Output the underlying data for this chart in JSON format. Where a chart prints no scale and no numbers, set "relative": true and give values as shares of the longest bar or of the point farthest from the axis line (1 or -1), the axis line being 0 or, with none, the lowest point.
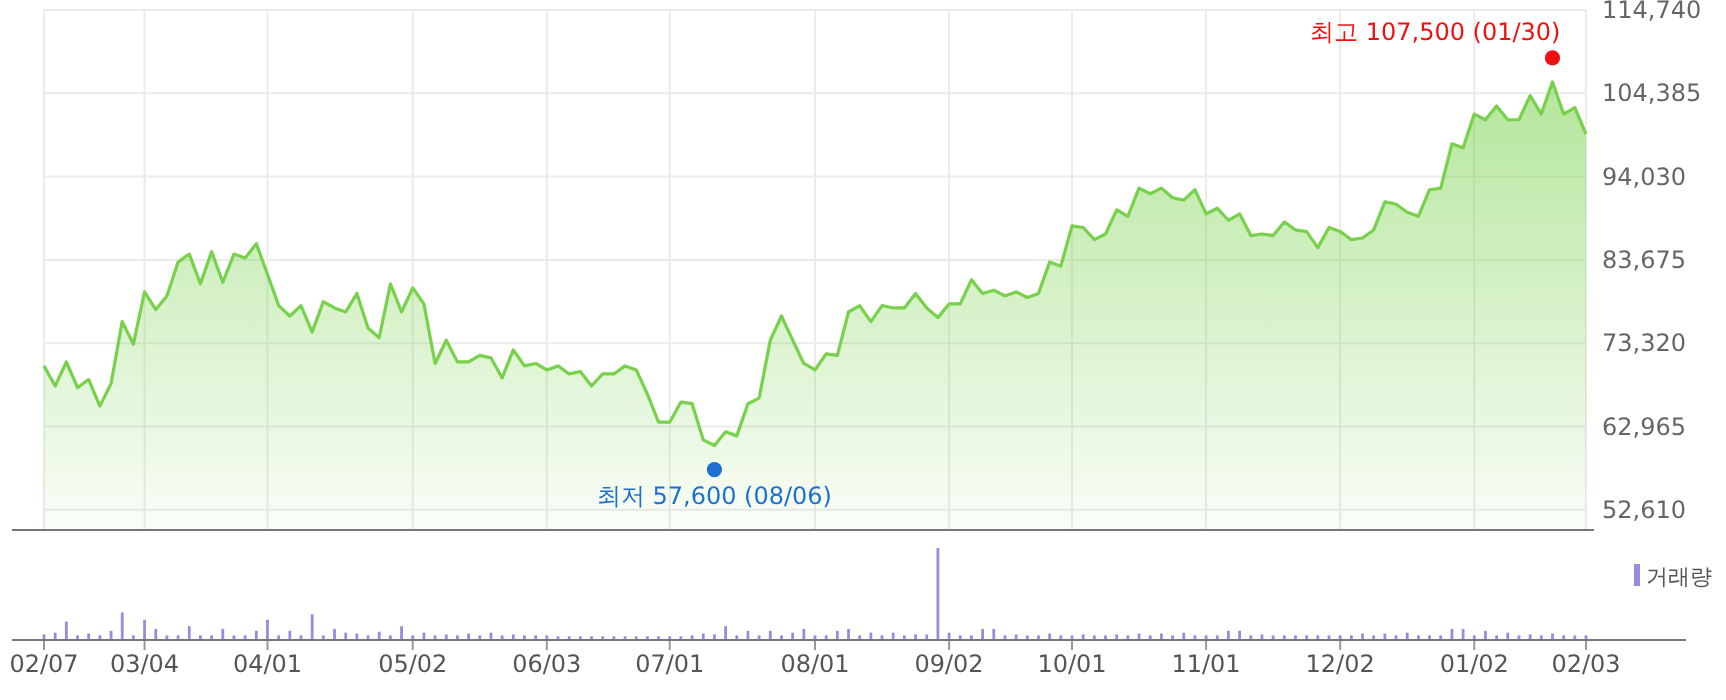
{
  "chart_data": [
    {
      "type": "area",
      "color": "#77d14a",
      "grid": true,
      "tick_labels": "y",
      "ylim": [
        50100,
        114740
      ],
      "categories": [
        null,
        null,
        null,
        null,
        null,
        null,
        null,
        null,
        null,
        null,
        null,
        null,
        null,
        null,
        null,
        null,
        null,
        null,
        null,
        null,
        null,
        null,
        null,
        null,
        null,
        null,
        null,
        null,
        null,
        null,
        null,
        null,
        null,
        null,
        null,
        null,
        null,
        null,
        null,
        null,
        null,
        null,
        null,
        null,
        null,
        null,
        null,
        null,
        null,
        null,
        null,
        null,
        null,
        null,
        null,
        null,
        null,
        null,
        null,
        null,
        null,
        null,
        null,
        null,
        null,
        null,
        null,
        null,
        null,
        null,
        null,
        null,
        null,
        null,
        null,
        null,
        null,
        null,
        null,
        null,
        null,
        null,
        null,
        null,
        null,
        null,
        null,
        null,
        null,
        null,
        null,
        null,
        null,
        null,
        null,
        null,
        null,
        null,
        null,
        null,
        null,
        null,
        null,
        null,
        null,
        null,
        null,
        null,
        null,
        null,
        null,
        null,
        null,
        null,
        null,
        null,
        null,
        null,
        null,
        null,
        null,
        null,
        null,
        null,
        null,
        null,
        null,
        null,
        null,
        null,
        null,
        null,
        null,
        null,
        null,
        null,
        null,
        null,
        null
      ],
      "yticks": [
        {
          "value": 52610,
          "label": "52,610"
        },
        {
          "value": 62965,
          "label": "62,965"
        },
        {
          "value": 73320,
          "label": "73,320"
        },
        {
          "value": 83675,
          "label": "83,675"
        },
        {
          "value": 94030,
          "label": "94,030"
        },
        {
          "value": 104385,
          "label": "104,385"
        },
        {
          "value": 114740,
          "label": "114,740"
        }
      ],
      "annotations": [
        "최고 107,500 (01/30)",
        "최저 57,600 (08/06)"
      ],
      "values": [
        70500,
        68000,
        71000,
        67800,
        68800,
        65500,
        68300,
        76000,
        73200,
        79700,
        77500,
        79200,
        83400,
        84400,
        80700,
        84700,
        80900,
        84400,
        83900,
        85700,
        81900,
        78000,
        76700,
        78000,
        74700,
        78500,
        77700,
        77200,
        79500,
        75200,
        74000,
        80700,
        77200,
        80200,
        78200,
        70800,
        73700,
        71000,
        71000,
        71800,
        71500,
        69000,
        72500,
        70500,
        70800,
        70000,
        70500,
        69500,
        69800,
        68000,
        69500,
        69500,
        70500,
        70000,
        67000,
        63500,
        63500,
        66000,
        65800,
        61300,
        60600,
        62300,
        61800,
        65800,
        66500,
        73700,
        76700,
        73700,
        70800,
        70000,
        72000,
        71800,
        77200,
        78000,
        76000,
        78000,
        77700,
        77700,
        79500,
        77700,
        76500,
        78200,
        78200,
        81200,
        79500,
        79900,
        79200,
        79700,
        79000,
        79500,
        83400,
        82900,
        87900,
        87700,
        86200,
        86900,
        89900,
        89100,
        92600,
        91900,
        92600,
        91400,
        91100,
        92400,
        89400,
        90100,
        88600,
        89400,
        86700,
        86900,
        86700,
        88400,
        87400,
        87200,
        85200,
        87700,
        87200,
        86200,
        86400,
        87400,
        90900,
        90600,
        89600,
        89100,
        92400,
        92600,
        98100,
        97600,
        101800,
        101100,
        102800,
        101100,
        101100,
        104100,
        101800,
        105800,
        101800,
        102600,
        99300
      ]
    },
    {
      "type": "bar",
      "relative": true,
      "legend": "top right",
      "categories": [
        "02/07",
        null,
        null,
        null,
        null,
        null,
        null,
        null,
        null,
        "03/04",
        null,
        null,
        null,
        null,
        null,
        null,
        null,
        null,
        null,
        null,
        "04/01",
        null,
        null,
        null,
        null,
        null,
        null,
        null,
        null,
        null,
        null,
        null,
        null,
        "05/02",
        null,
        null,
        null,
        null,
        null,
        null,
        null,
        null,
        null,
        null,
        null,
        "06/03",
        null,
        null,
        null,
        null,
        null,
        null,
        null,
        null,
        null,
        null,
        "07/01",
        null,
        null,
        null,
        null,
        null,
        null,
        null,
        null,
        null,
        null,
        null,
        null,
        "08/01",
        null,
        null,
        null,
        null,
        null,
        null,
        null,
        null,
        null,
        null,
        null,
        "09/02",
        null,
        null,
        null,
        null,
        null,
        null,
        null,
        null,
        null,
        null,
        "10/01",
        null,
        null,
        null,
        null,
        null,
        null,
        null,
        null,
        null,
        null,
        null,
        "11/01",
        null,
        null,
        null,
        null,
        null,
        null,
        null,
        null,
        null,
        null,
        null,
        "12/02",
        null,
        null,
        null,
        null,
        null,
        null,
        null,
        null,
        null,
        null,
        null,
        "01/02",
        null,
        null,
        null,
        null,
        null,
        null,
        null,
        null,
        null,
        "02/03"
      ],
      "series": [
        {
          "name": "거래량",
          "color": "#9a8ae0",
          "values": [
            0.06,
            0.08,
            0.2,
            0.05,
            0.07,
            0.05,
            0.1,
            0.3,
            0.05,
            0.22,
            0.12,
            0.05,
            0.05,
            0.15,
            0.05,
            0.05,
            0.12,
            0.05,
            0.05,
            0.1,
            0.22,
            0.05,
            0.1,
            0.05,
            0.28,
            0.05,
            0.12,
            0.08,
            0.07,
            0.05,
            0.09,
            0.05,
            0.15,
            0.05,
            0.08,
            0.05,
            0.06,
            0.05,
            0.07,
            0.05,
            0.08,
            0.05,
            0.06,
            0.05,
            0.05,
            0.05,
            0.04,
            0.04,
            0.04,
            0.04,
            0.04,
            0.04,
            0.04,
            0.04,
            0.04,
            0.04,
            0.04,
            0.04,
            0.05,
            0.07,
            0.06,
            0.15,
            0.05,
            0.1,
            0.05,
            0.1,
            0.05,
            0.08,
            0.12,
            0.05,
            0.05,
            0.1,
            0.12,
            0.05,
            0.08,
            0.05,
            0.08,
            0.05,
            0.06,
            0.06,
            1,
            0.08,
            0.05,
            0.05,
            0.12,
            0.12,
            0.05,
            0.06,
            0.05,
            0.05,
            0.07,
            0.05,
            0.05,
            0.06,
            0.05,
            0.05,
            0.06,
            0.05,
            0.07,
            0.05,
            0.07,
            0.05,
            0.08,
            0.05,
            0.05,
            0.05,
            0.1,
            0.1,
            0.05,
            0.06,
            0.05,
            0.05,
            0.05,
            0.05,
            0.05,
            0.05,
            0.05,
            0.05,
            0.07,
            0.05,
            0.07,
            0.05,
            0.08,
            0.05,
            0.05,
            0.05,
            0.12,
            0.12,
            0.05,
            0.1,
            0.05,
            0.08,
            0.05,
            0.06,
            0.05,
            0.07,
            0.05,
            0.05,
            0.05
          ]
        }
      ]
    }
  ]
}
